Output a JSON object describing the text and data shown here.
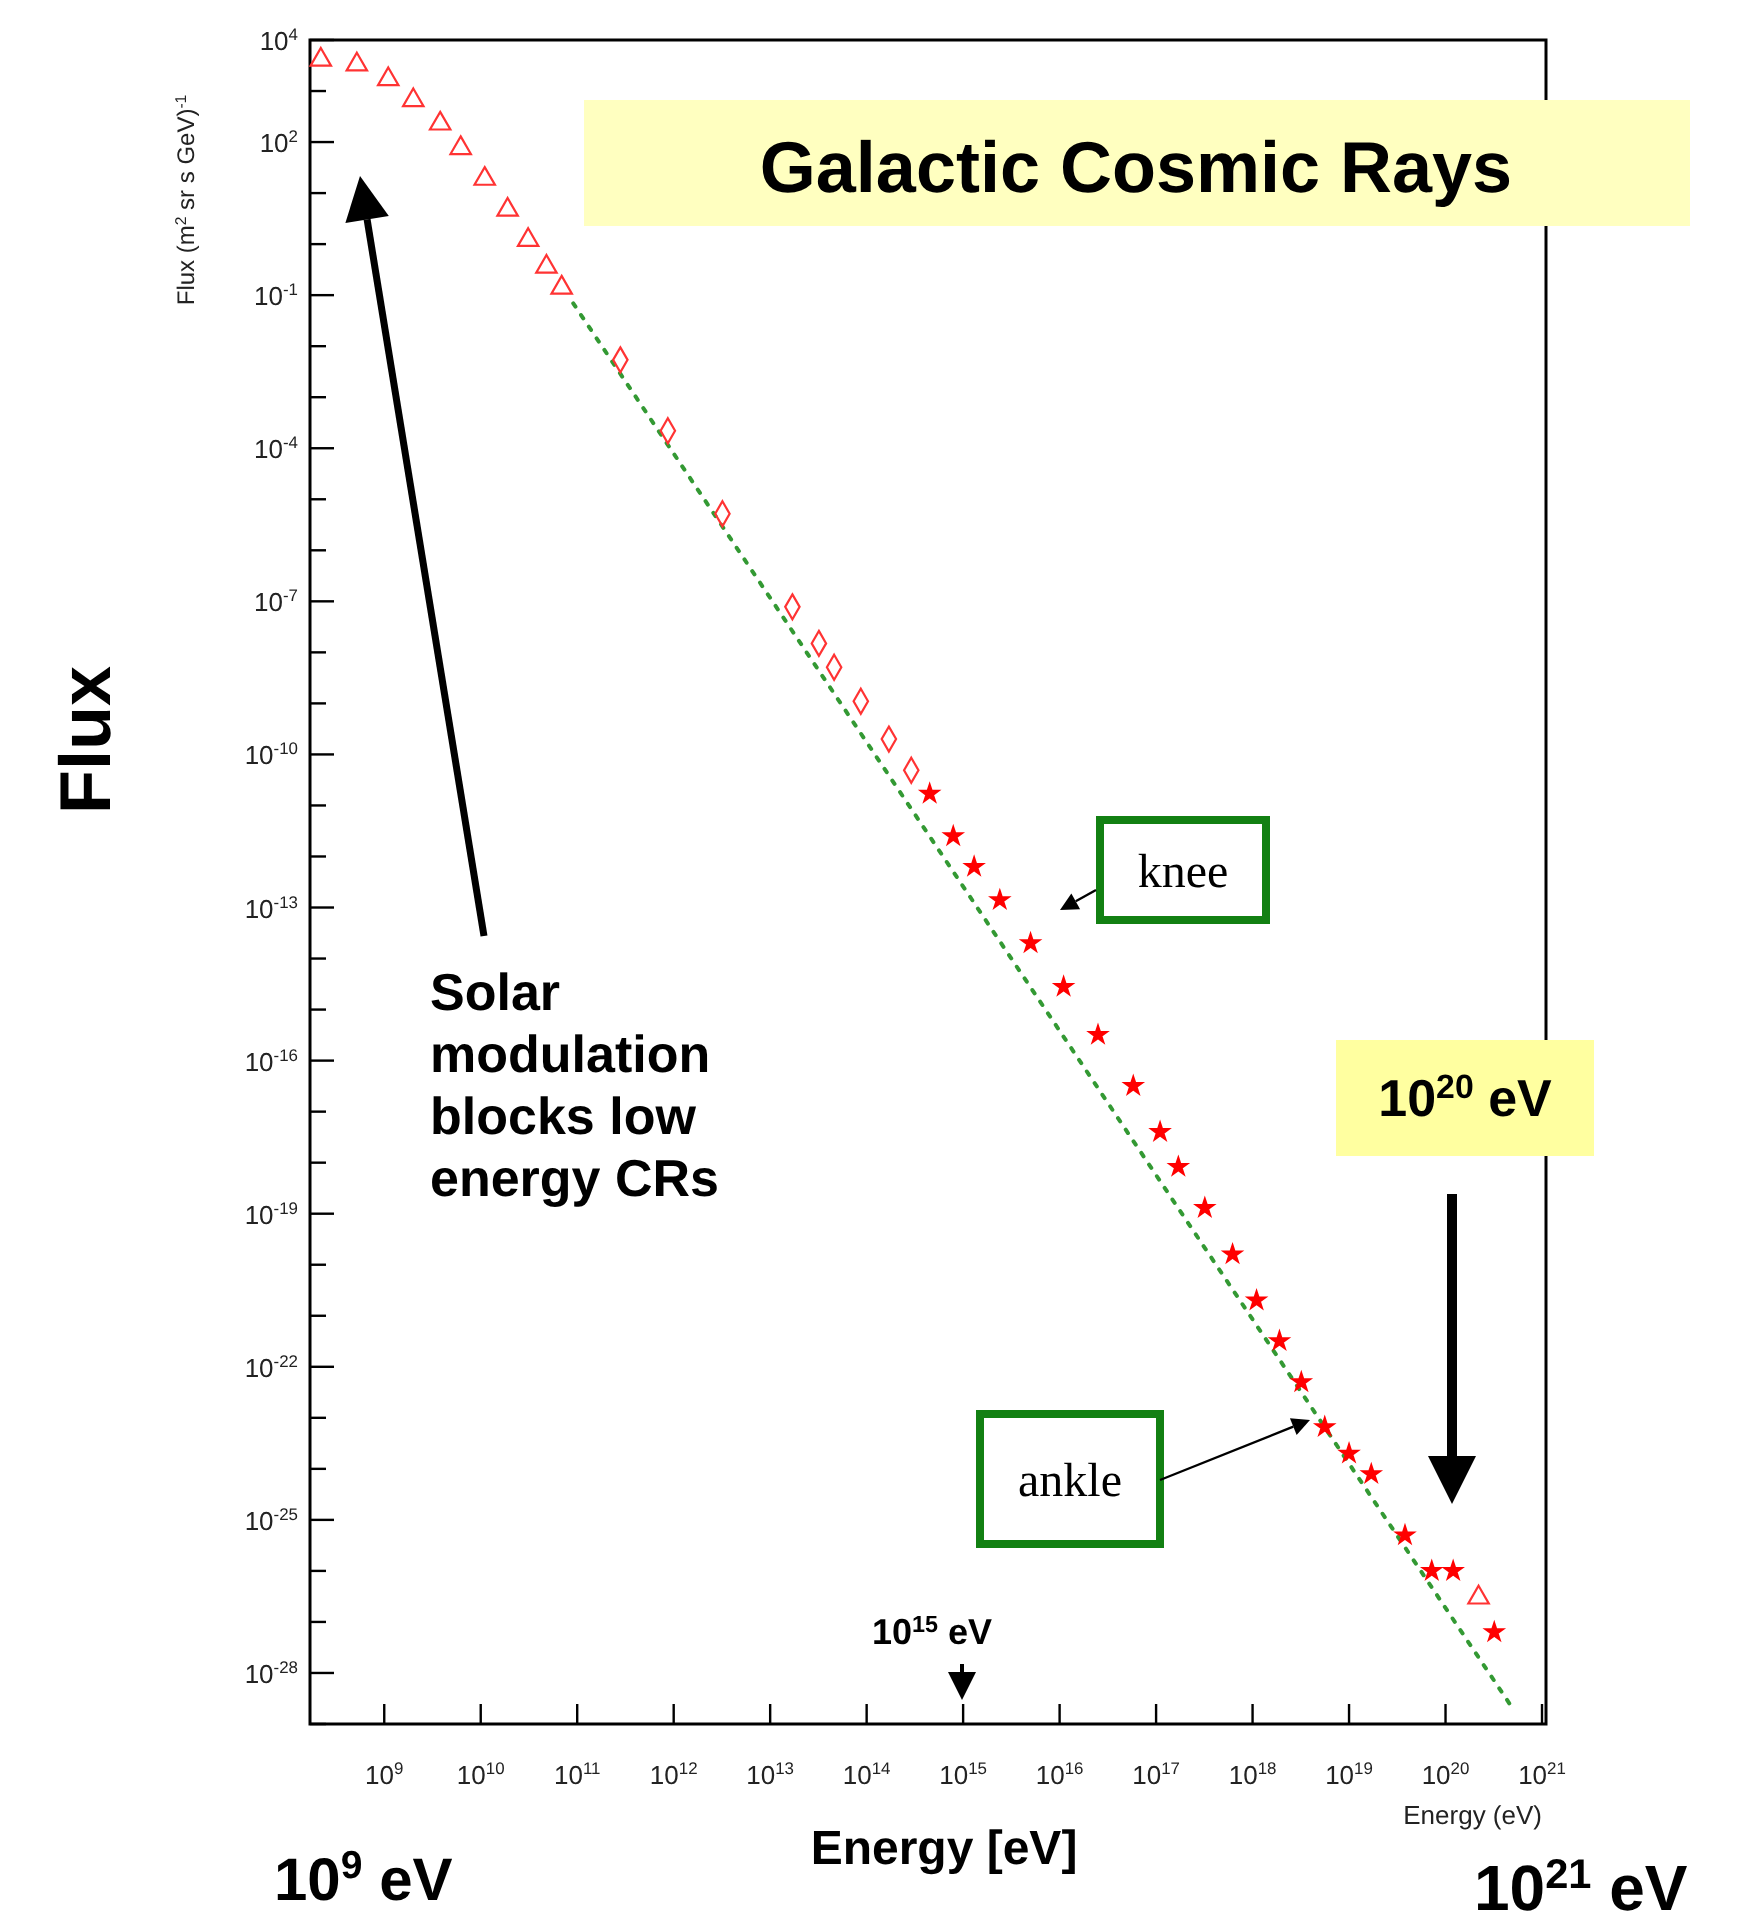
{
  "chart_data": {
    "type": "scatter",
    "title": "Galactic Cosmic Rays",
    "xlabel": "Energy (eV)",
    "ylabel": "Flux (m$^{2}$ sr s GeV)$^{-1}$",
    "log": "xy",
    "grid": false,
    "xlim": [
      170000000.0,
      1.1e+21
    ],
    "xticks": [
      {
        "value": 1000000000.0,
        "label": "10$^{9}$"
      },
      {
        "value": 10000000000.0,
        "label": "10$^{10}$"
      },
      {
        "value": 100000000000.0,
        "label": "10$^{11}$"
      },
      {
        "value": 1000000000000.0,
        "label": "10$^{12}$"
      },
      {
        "value": 10000000000000.0,
        "label": "10$^{13}$"
      },
      {
        "value": 100000000000000.0,
        "label": "10$^{14}$"
      },
      {
        "value": 1000000000000000.0,
        "label": "10$^{15}$"
      },
      {
        "value": 1e+16,
        "label": "10$^{16}$"
      },
      {
        "value": 1e+17,
        "label": "10$^{17}$"
      },
      {
        "value": 1e+18,
        "label": "10$^{18}$"
      },
      {
        "value": 1e+19,
        "label": "10$^{19}$"
      },
      {
        "value": 1e+20,
        "label": "10$^{20}$"
      },
      {
        "value": 1e+21,
        "label": "10$^{21}$"
      }
    ],
    "ylim": [
      1e-29,
      10000.0
    ],
    "yticks": [
      {
        "value": 10000.0,
        "label": "10$^{4}$"
      },
      {
        "value": 1000.0,
        "label": null
      },
      {
        "value": 100.0,
        "label": "10$^{2}$"
      },
      {
        "value": 10.0,
        "label": null
      },
      {
        "value": 1,
        "label": null
      },
      {
        "value": 0.1,
        "label": "10$^{-1}$"
      },
      {
        "value": 0.01,
        "label": null
      },
      {
        "value": 0.001,
        "label": null
      },
      {
        "value": 0.0001,
        "label": "10$^{-4}$"
      },
      {
        "value": 1e-05,
        "label": null
      },
      {
        "value": 1e-06,
        "label": null
      },
      {
        "value": 1e-07,
        "label": "10$^{-7}$"
      },
      {
        "value": 1e-08,
        "label": null
      },
      {
        "value": 1e-09,
        "label": null
      },
      {
        "value": 1e-10,
        "label": "10$^{-10}$"
      },
      {
        "value": 1e-11,
        "label": null
      },
      {
        "value": 1e-12,
        "label": null
      },
      {
        "value": 1e-13,
        "label": "10$^{-13}$"
      },
      {
        "value": 1e-14,
        "label": null
      },
      {
        "value": 1e-15,
        "label": null
      },
      {
        "value": 1e-16,
        "label": "10$^{-16}$"
      },
      {
        "value": 1e-17,
        "label": null
      },
      {
        "value": 1e-18,
        "label": null
      },
      {
        "value": 1e-19,
        "label": "10$^{-19}$"
      },
      {
        "value": 1e-20,
        "label": null
      },
      {
        "value": 1e-21,
        "label": null
      },
      {
        "value": 1e-22,
        "label": "10$^{-22}$"
      },
      {
        "value": 1e-23,
        "label": null
      },
      {
        "value": 1e-24,
        "label": null
      },
      {
        "value": 1e-25,
        "label": "10$^{-25}$"
      },
      {
        "value": 1e-26,
        "label": null
      },
      {
        "value": 1e-27,
        "label": null
      },
      {
        "value": 1e-28,
        "label": "10$^{-28}$"
      },
      {
        "value": 1e-29,
        "label": null
      }
    ],
    "series": [
      {
        "type": "line",
        "color": "#339933",
        "line_style": "dotted",
        "marker": "none",
        "x": [
          91000000000.0,
          4.9e+20
        ],
        "values": [
          0.069,
          2.1e-29
        ]
      },
      {
        "color": "#ff3333",
        "marker": "triangle",
        "x": [
          220000000.0,
          520000000.0,
          1100000000.0,
          2000000000.0,
          3800000000.0,
          6200000000.0,
          11000000000.0,
          19000000000.0,
          31000000000.0,
          48000000000.0,
          69000000000.0,
          2.2e+20
        ],
        "values": [
          4100.0,
          3300.0,
          1700.0,
          660.0,
          230.0,
          76,
          19,
          4.7,
          1.2,
          0.36,
          0.14,
          3e-27
        ]
      },
      {
        "color": "#ff3333",
        "marker": "diamond",
        "x": [
          280000000000.0,
          870000000000.0,
          3200000000000.0,
          17000000000000.0,
          32000000000000.0,
          46000000000000.0,
          87000000000000.0,
          170000000000000.0,
          290000000000000.0
        ],
        "values": [
          0.0054,
          0.00022,
          5.2e-06,
          7.8e-08,
          1.5e-08,
          5.1e-09,
          1.1e-09,
          2e-10,
          4.9e-11
        ]
      },
      {
        "color": "#ff0000",
        "marker": "star",
        "x": [
          450000000000000.0,
          790000000000000.0,
          1300000000000000.0,
          2400000000000000.0,
          5000000000000000.0,
          1.1e+16,
          2.5e+16,
          5.8e+16,
          1.1e+17,
          1.7e+17,
          3.2e+17,
          6.2e+17,
          1.1e+18,
          1.9e+18,
          3.2e+18,
          5.6e+18,
          1e+19,
          1.7e+19,
          3.8e+19,
          7.2e+19,
          1.2e+20,
          3.2e+20
        ],
        "values": [
          1.7e-11,
          2.5e-12,
          6.3e-13,
          1.4e-13,
          2e-14,
          2.8e-15,
          3.2e-16,
          3.2e-17,
          4e-18,
          8.3e-19,
          1.3e-19,
          1.6e-20,
          2e-21,
          3.2e-22,
          5e-23,
          6.6e-24,
          2e-24,
          7.9e-25,
          5e-26,
          1e-26,
          1e-26,
          6.3e-28
        ]
      }
    ],
    "annotations": [
      "Solar modulation blocks low energy CRs",
      "knee",
      "ankle",
      "10$^{20}$ eV",
      "10$^{15}$ eV",
      "10$^{9}$ eV",
      "10$^{21}$ eV",
      "Energy [eV]",
      "Flux"
    ]
  }
}
